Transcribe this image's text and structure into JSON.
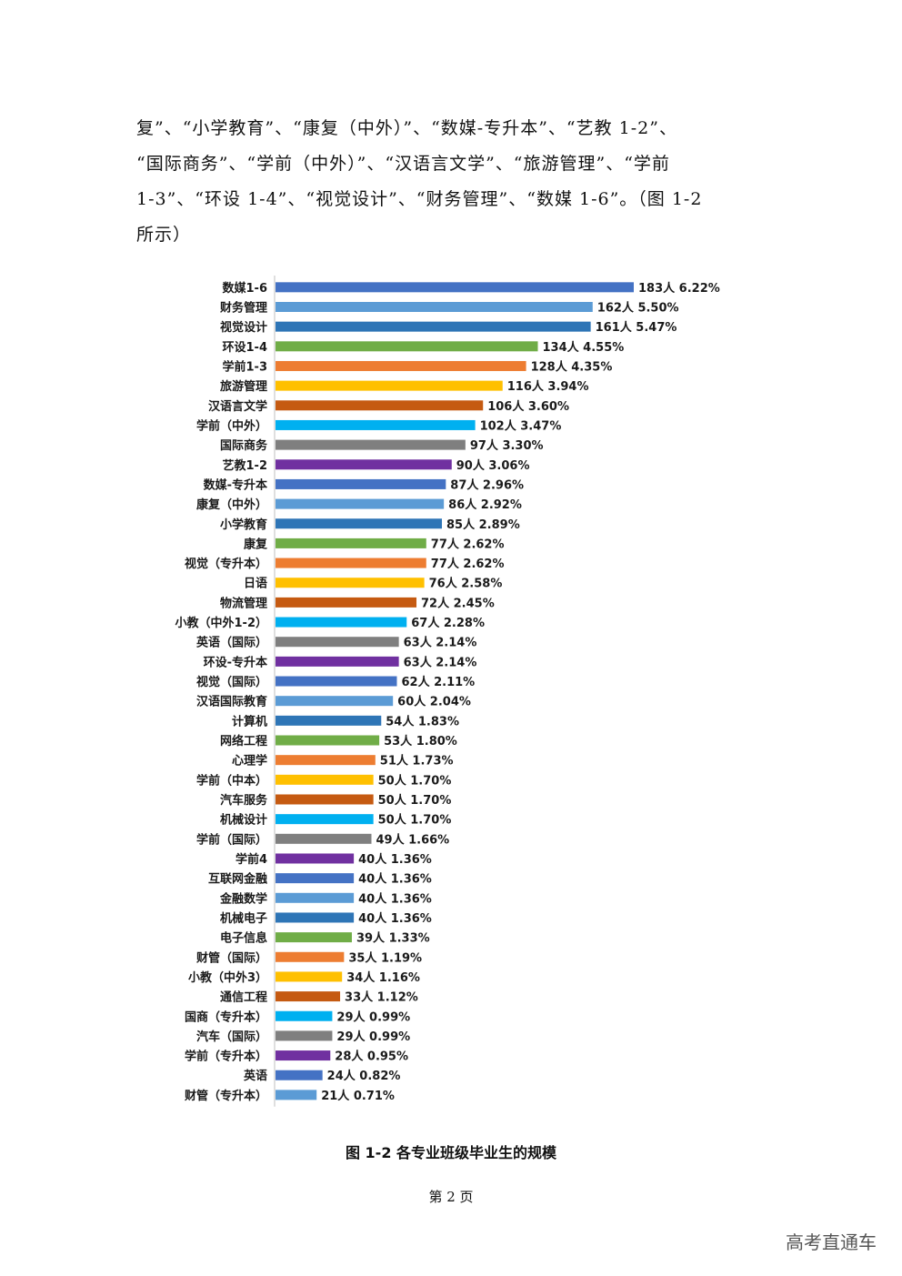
{
  "paragraph": {
    "lines": [
      "复”、“小学教育”、“康复（中外）”、“数媒-专升本”、“艺教 1-2”、",
      "“国际商务”、“学前（中外）”、“汉语言文学”、“旅游管理”、“学前",
      "1-3”、“环设 1-4”、“视觉设计”、“财务管理”、“数媒 1-6”。（图 1-2",
      "所示）"
    ]
  },
  "chart_data": {
    "type": "bar",
    "orientation": "horizontal",
    "title": "",
    "xlabel": "",
    "ylabel": "",
    "xlim": [
      0,
      183
    ],
    "grid": false,
    "legend": "none",
    "value_unit": "人",
    "categories": [
      "数媒1-6",
      "财务管理",
      "视觉设计",
      "环设1-4",
      "学前1-3",
      "旅游管理",
      "汉语言文学",
      "学前（中外）",
      "国际商务",
      "艺教1-2",
      "数媒-专升本",
      "康复（中外）",
      "小学教育",
      "康复",
      "视觉（专升本）",
      "日语",
      "物流管理",
      "小教（中外1-2）",
      "英语（国际）",
      "环设-专升本",
      "视觉（国际）",
      "汉语国际教育",
      "计算机",
      "网络工程",
      "心理学",
      "学前（中本）",
      "汽车服务",
      "机械设计",
      "学前（国际）",
      "学前4",
      "互联网金融",
      "金融数学",
      "机械电子",
      "电子信息",
      "财管（国际）",
      "小教（中外3）",
      "通信工程",
      "国商（专升本）",
      "汽车（国际）",
      "学前（专升本）",
      "英语",
      "财管（专升本）"
    ],
    "values": [
      183,
      162,
      161,
      134,
      128,
      116,
      106,
      102,
      97,
      90,
      87,
      86,
      85,
      77,
      77,
      76,
      72,
      67,
      63,
      63,
      62,
      60,
      54,
      53,
      51,
      50,
      50,
      50,
      49,
      40,
      40,
      40,
      40,
      39,
      35,
      34,
      33,
      29,
      29,
      28,
      24,
      21
    ],
    "percents": [
      "6.22%",
      "5.50%",
      "5.47%",
      "4.55%",
      "4.35%",
      "3.94%",
      "3.60%",
      "3.47%",
      "3.30%",
      "3.06%",
      "2.96%",
      "2.92%",
      "2.89%",
      "2.62%",
      "2.62%",
      "2.58%",
      "2.45%",
      "2.28%",
      "2.14%",
      "2.14%",
      "2.11%",
      "2.04%",
      "1.83%",
      "1.80%",
      "1.73%",
      "1.70%",
      "1.70%",
      "1.70%",
      "1.66%",
      "1.36%",
      "1.36%",
      "1.36%",
      "1.36%",
      "1.33%",
      "1.19%",
      "1.16%",
      "1.12%",
      "0.99%",
      "0.99%",
      "0.95%",
      "0.82%",
      "0.71%"
    ],
    "colors": [
      "#4472C4",
      "#5B9BD5",
      "#2E75B6",
      "#70AD47",
      "#ED7D31",
      "#FFC000",
      "#C55A11",
      "#00B0F0",
      "#7F7F7F",
      "#7030A0"
    ]
  },
  "caption": "图 1-2 各专业班级毕业生的规模",
  "page_number": "第 2 页",
  "watermark": "高考直通车"
}
